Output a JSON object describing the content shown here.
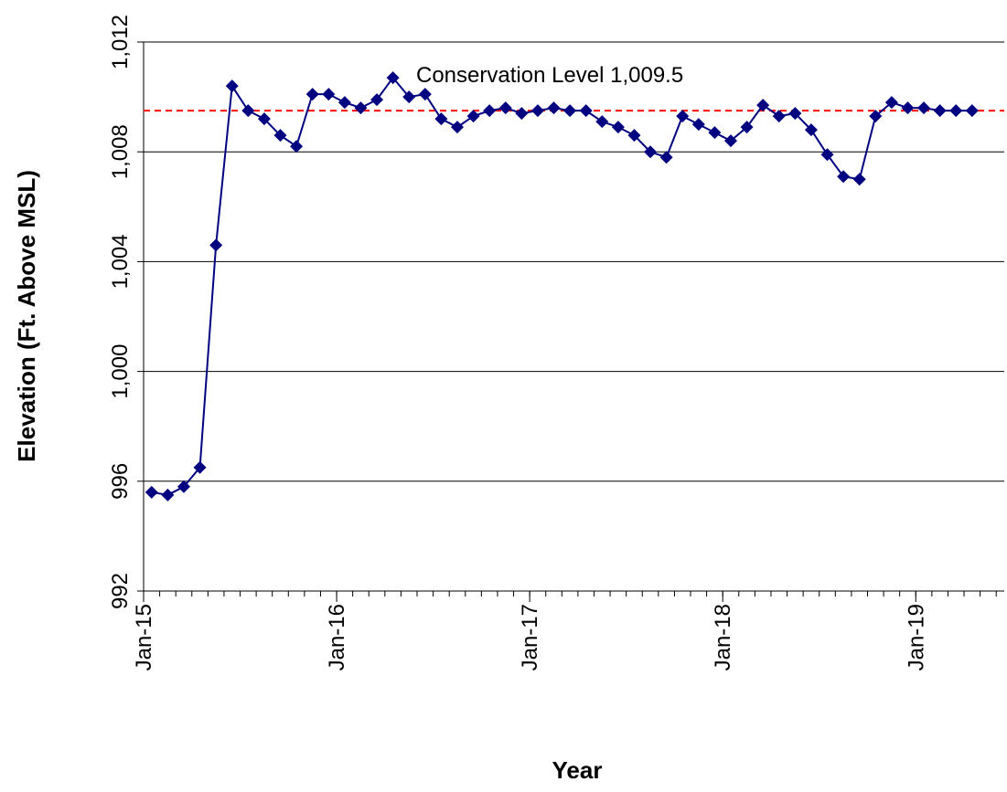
{
  "chart_data": {
    "type": "line",
    "x_label": "Year",
    "y_label": "Elevation (Ft. Above MSL)",
    "xlim": [
      0,
      53.5
    ],
    "xticks": [
      {
        "value": 0,
        "label": "Jan-15"
      },
      {
        "value": 12,
        "label": "Jan-16"
      },
      {
        "value": 24,
        "label": "Jan-17"
      },
      {
        "value": 36,
        "label": "Jan-18"
      },
      {
        "value": 48,
        "label": "Jan-19"
      }
    ],
    "ylim": [
      992,
      1012
    ],
    "yticks": [
      992,
      996,
      {
        "value": 1000,
        "label": "1,000"
      },
      {
        "value": 1004,
        "label": "1,004"
      },
      {
        "value": 1008,
        "label": "1,008"
      },
      {
        "value": 1012,
        "label": "1,012"
      }
    ],
    "grid": true,
    "x": [
      0.5,
      1.5,
      2.5,
      3.5,
      4.5,
      5.5,
      6.5,
      7.5,
      8.5,
      9.5,
      10.5,
      11.5,
      12.5,
      13.5,
      14.5,
      15.5,
      16.5,
      17.5,
      18.5,
      19.5,
      20.5,
      21.5,
      22.5,
      23.5,
      24.5,
      25.5,
      26.5,
      27.5,
      28.5,
      29.5,
      30.5,
      31.5,
      32.5,
      33.5,
      34.5,
      35.5,
      36.5,
      37.5,
      38.5,
      39.5,
      40.5,
      41.5,
      42.5,
      43.5,
      44.5,
      45.5,
      46.5,
      47.5,
      48.5,
      49.5,
      50.5,
      51.5
    ],
    "series": [
      {
        "color": "#000080",
        "values": [
          995.6,
          995.5,
          995.8,
          996.5,
          1004.6,
          1010.4,
          1009.5,
          1009.2,
          1008.6,
          1008.2,
          1010.1,
          1010.1,
          1009.8,
          1009.6,
          1009.9,
          1010.7,
          1010.0,
          1010.1,
          1009.2,
          1008.9,
          1009.3,
          1009.5,
          1009.6,
          1009.4,
          1009.5,
          1009.6,
          1009.5,
          1009.5,
          1009.1,
          1008.9,
          1008.6,
          1008.0,
          1007.8,
          1009.3,
          1009.0,
          1008.7,
          1008.4,
          1008.9,
          1009.7,
          1009.3,
          1009.4,
          1008.8,
          1007.9,
          1007.1,
          1007.0,
          1009.3,
          1009.8,
          1009.6,
          1009.6,
          1009.5,
          1009.5,
          1009.5
        ]
      }
    ],
    "reference_line": {
      "value": 1009.5,
      "label": "Conservation Level 1,009.5",
      "color": "#ff0000"
    }
  }
}
